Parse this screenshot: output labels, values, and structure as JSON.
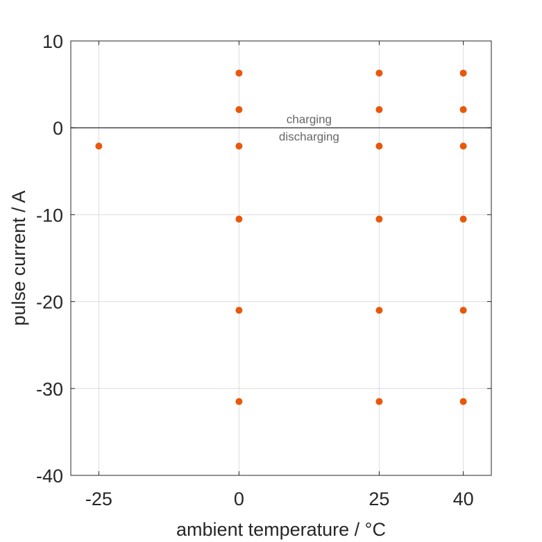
{
  "chart_data": {
    "type": "scatter",
    "xlabel": "ambient temperature / °C",
    "ylabel": "pulse current / A",
    "xlim": [
      -30,
      45
    ],
    "ylim": [
      -40,
      10
    ],
    "xticks": [
      -25,
      0,
      25,
      40
    ],
    "yticks": [
      -40,
      -30,
      -20,
      -10,
      0,
      10
    ],
    "tick_labels_x": [
      "-25",
      "0",
      "25",
      "40"
    ],
    "tick_labels_y": [
      "-40",
      "-30",
      "-20",
      "-10",
      "0",
      "10"
    ],
    "grid": true,
    "reference_line_y": 0,
    "annotations": [
      {
        "text": "charging",
        "x": 12.5,
        "y": 1.0
      },
      {
        "text": "discharging",
        "x": 12.5,
        "y": -1.0
      }
    ],
    "marker_color": "#E8580C",
    "points": [
      {
        "x": -25,
        "y": -2.1
      },
      {
        "x": 0,
        "y": 6.3
      },
      {
        "x": 0,
        "y": 2.1
      },
      {
        "x": 0,
        "y": -2.1
      },
      {
        "x": 0,
        "y": -10.5
      },
      {
        "x": 0,
        "y": -21
      },
      {
        "x": 0,
        "y": -31.5
      },
      {
        "x": 25,
        "y": 6.3
      },
      {
        "x": 25,
        "y": 2.1
      },
      {
        "x": 25,
        "y": -2.1
      },
      {
        "x": 25,
        "y": -10.5
      },
      {
        "x": 25,
        "y": -21
      },
      {
        "x": 25,
        "y": -31.5
      },
      {
        "x": 40,
        "y": 6.3
      },
      {
        "x": 40,
        "y": 2.1
      },
      {
        "x": 40,
        "y": -2.1
      },
      {
        "x": 40,
        "y": -10.5
      },
      {
        "x": 40,
        "y": -21
      },
      {
        "x": 40,
        "y": -31.5
      }
    ]
  }
}
